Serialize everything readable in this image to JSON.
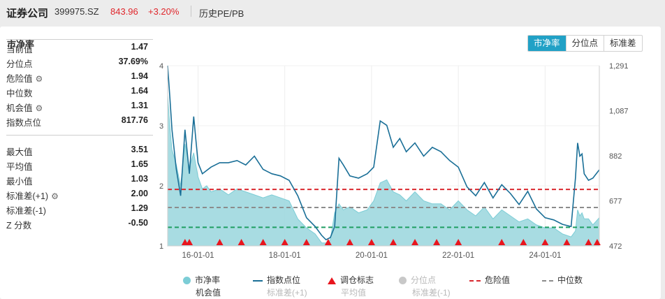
{
  "header": {
    "name": "证券公司",
    "code": "399975.SZ",
    "price": "843.96",
    "change": "+3.20%",
    "history_link": "历史PE/PB"
  },
  "panel": {
    "title": "市净率",
    "tabs": [
      {
        "label": "市净率",
        "active": true
      },
      {
        "label": "分位点",
        "active": false
      },
      {
        "label": "标准差",
        "active": false
      }
    ]
  },
  "stats": [
    {
      "label": "当前值",
      "value": "1.47",
      "gear": false
    },
    {
      "label": "分位点",
      "value": "37.69%",
      "gear": false
    },
    {
      "label": "危险值",
      "value": "1.94",
      "gear": true
    },
    {
      "label": "中位数",
      "value": "1.64",
      "gear": false
    },
    {
      "label": "机会值",
      "value": "1.31",
      "gear": true
    },
    {
      "label": "指数点位",
      "value": "817.76",
      "gear": false
    },
    {
      "label": "最大值",
      "value": "3.51",
      "gear": false
    },
    {
      "label": "平均值",
      "value": "1.65",
      "gear": false
    },
    {
      "label": "最小值",
      "value": "1.03",
      "gear": false
    },
    {
      "label": "标准差(+1)",
      "value": "2.00",
      "gear": true
    },
    {
      "label": "标准差(-1)",
      "value": "1.29",
      "gear": false
    },
    {
      "label": "Z 分数",
      "value": "-0.50",
      "gear": false
    }
  ],
  "legend": {
    "items": [
      {
        "label": "市净率",
        "kind": "dot",
        "color": "#7ccdd6",
        "dim": false
      },
      {
        "label": "指数点位",
        "kind": "line",
        "color": "#1a6f97",
        "dim": false
      },
      {
        "label": "调仓标志",
        "kind": "triangle",
        "color": "#e8161e",
        "dim": false
      },
      {
        "label": "分位点",
        "kind": "dot",
        "color": "#c8c8c8",
        "dim": true
      },
      {
        "label": "危险值",
        "kind": "dash",
        "color": "#d9282f",
        "dim": false
      },
      {
        "label": "中位数",
        "kind": "dash",
        "color": "#8c8c8c",
        "dim": false
      }
    ],
    "sub_items": [
      {
        "label": "机会值",
        "dim": false
      },
      {
        "label": "标准差(+1)",
        "dim": true
      },
      {
        "label": "平均值",
        "dim": true
      },
      {
        "label": "标准差(-1)",
        "dim": true
      }
    ]
  },
  "chart_data": {
    "type": "area",
    "x_ticks": [
      "16-01-01",
      "18-01-01",
      "20-01-01",
      "22-01-01",
      "24-01-01"
    ],
    "x_tick_years": [
      2016,
      2018,
      2020,
      2022,
      2024
    ],
    "x_range": [
      2015.3,
      2025.25
    ],
    "left_axis": {
      "ticks": [
        "1",
        "2",
        "3",
        "4"
      ],
      "ylim": [
        1,
        4
      ]
    },
    "right_axis": {
      "ticks": [
        "472",
        "677",
        "882",
        "1,087",
        "1,291"
      ],
      "ylim": [
        472,
        1291
      ]
    },
    "reference_lines": {
      "danger": 1.94,
      "median": 1.64,
      "opportunity": 1.31
    },
    "series": [
      {
        "name": "市净率",
        "x": [
          2015.3,
          2015.35,
          2015.4,
          2015.5,
          2015.6,
          2015.7,
          2015.8,
          2015.9,
          2016.0,
          2016.1,
          2016.2,
          2016.3,
          2016.5,
          2016.7,
          2016.9,
          2017.1,
          2017.3,
          2017.5,
          2017.7,
          2017.9,
          2018.1,
          2018.3,
          2018.5,
          2018.7,
          2018.85,
          2018.95,
          2019.05,
          2019.15,
          2019.25,
          2019.35,
          2019.5,
          2019.7,
          2019.9,
          2020.05,
          2020.2,
          2020.35,
          2020.5,
          2020.65,
          2020.8,
          2021.0,
          2021.2,
          2021.4,
          2021.6,
          2021.8,
          2022.0,
          2022.2,
          2022.4,
          2022.6,
          2022.8,
          2023.0,
          2023.2,
          2023.4,
          2023.6,
          2023.8,
          2024.0,
          2024.2,
          2024.4,
          2024.6,
          2024.7,
          2024.75,
          2024.8,
          2024.85,
          2024.9,
          2025.0,
          2025.1,
          2025.25
        ],
        "values": [
          3.51,
          3.0,
          2.6,
          2.35,
          2.0,
          2.7,
          2.3,
          2.55,
          2.15,
          1.95,
          2.0,
          1.9,
          1.95,
          1.85,
          1.95,
          1.9,
          1.85,
          1.8,
          1.85,
          1.8,
          1.75,
          1.45,
          1.3,
          1.2,
          1.05,
          1.05,
          1.1,
          1.55,
          1.7,
          1.6,
          1.65,
          1.55,
          1.6,
          1.75,
          2.05,
          2.1,
          1.9,
          1.85,
          1.75,
          1.9,
          1.75,
          1.7,
          1.7,
          1.6,
          1.75,
          1.6,
          1.5,
          1.65,
          1.45,
          1.6,
          1.5,
          1.4,
          1.45,
          1.35,
          1.3,
          1.3,
          1.2,
          1.15,
          1.25,
          1.6,
          1.5,
          1.55,
          1.45,
          1.45,
          1.35,
          1.47
        ]
      },
      {
        "name": "指数点位",
        "x": [
          2015.3,
          2015.35,
          2015.4,
          2015.5,
          2015.6,
          2015.7,
          2015.8,
          2015.9,
          2016.0,
          2016.1,
          2016.3,
          2016.5,
          2016.7,
          2016.9,
          2017.1,
          2017.3,
          2017.5,
          2017.7,
          2017.9,
          2018.1,
          2018.3,
          2018.5,
          2018.7,
          2018.85,
          2018.95,
          2019.05,
          2019.15,
          2019.25,
          2019.35,
          2019.5,
          2019.7,
          2019.9,
          2020.05,
          2020.2,
          2020.35,
          2020.5,
          2020.65,
          2020.8,
          2021.0,
          2021.2,
          2021.4,
          2021.6,
          2021.8,
          2022.0,
          2022.2,
          2022.4,
          2022.6,
          2022.8,
          2023.0,
          2023.2,
          2023.4,
          2023.6,
          2023.8,
          2024.0,
          2024.2,
          2024.4,
          2024.6,
          2024.7,
          2024.75,
          2024.8,
          2024.85,
          2024.9,
          2025.0,
          2025.1,
          2025.25
        ],
        "values": [
          1291,
          1150,
          1000,
          820,
          700,
          1000,
          800,
          1060,
          850,
          800,
          830,
          850,
          850,
          860,
          840,
          880,
          820,
          800,
          790,
          770,
          700,
          600,
          560,
          520,
          500,
          510,
          560,
          870,
          840,
          790,
          780,
          800,
          830,
          1040,
          1020,
          920,
          960,
          900,
          940,
          880,
          920,
          900,
          860,
          830,
          740,
          700,
          760,
          690,
          750,
          710,
          660,
          720,
          640,
          600,
          590,
          570,
          560,
          780,
          940,
          880,
          890,
          800,
          770,
          780,
          818
        ]
      }
    ],
    "rebalance_markers_x": [
      2015.7,
      2015.8,
      2016.5,
      2017.0,
      2017.5,
      2018.0,
      2018.5,
      2019.0,
      2019.5,
      2020.0,
      2020.5,
      2021.0,
      2021.5,
      2022.0,
      2023.0,
      2023.5,
      2024.0,
      2024.5,
      2025.0,
      2025.2
    ]
  }
}
